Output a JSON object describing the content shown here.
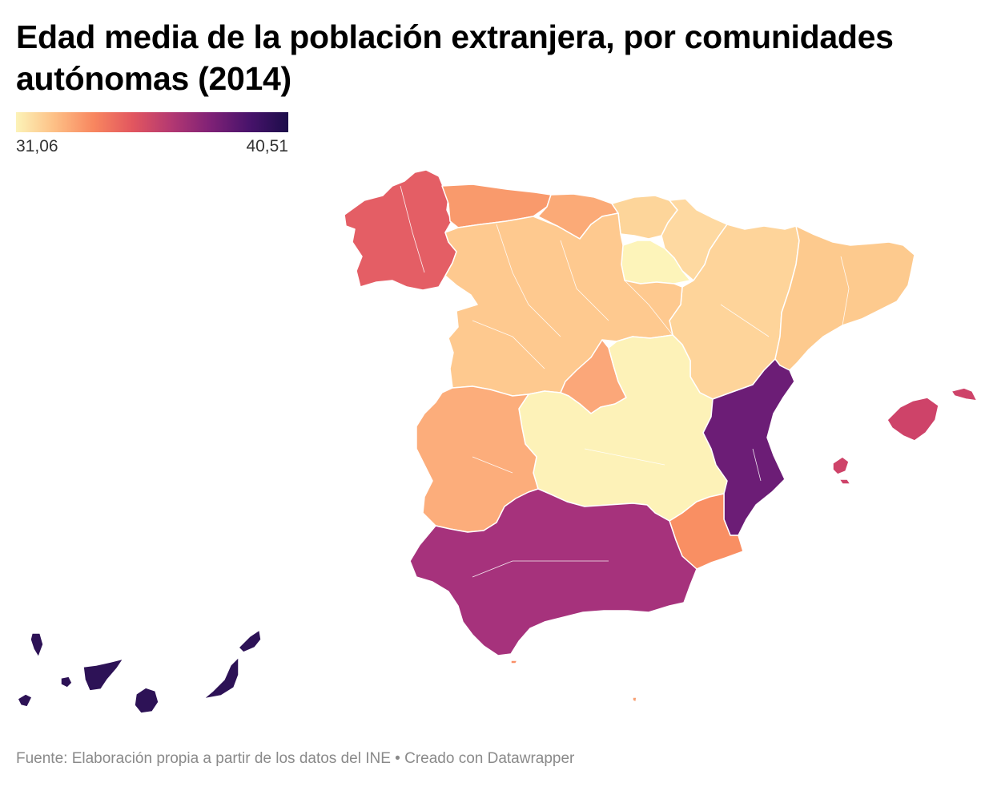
{
  "title": "Edad media de la población extranjera, por comunidades autónomas (2014)",
  "legend": {
    "min_label": "31,06",
    "max_label": "40,51",
    "min_value": 31.06,
    "max_value": 40.51,
    "color_stops": [
      "#fcf3b8",
      "#fdbf85",
      "#f8865f",
      "#e2565f",
      "#b33872",
      "#7f2176",
      "#48136b",
      "#1c0d4a"
    ]
  },
  "regions": {
    "galicia": {
      "color": "#e45e65"
    },
    "asturias": {
      "color": "#f99a6c"
    },
    "cantabria": {
      "color": "#fbaa77"
    },
    "pais_vasco": {
      "color": "#fdd59a"
    },
    "navarra": {
      "color": "#fed9a1"
    },
    "la_rioja": {
      "color": "#fdf4ba"
    },
    "aragon": {
      "color": "#fed49a"
    },
    "cataluna": {
      "color": "#fdca8e"
    },
    "castilla_y_leon": {
      "color": "#fec98f"
    },
    "madrid": {
      "color": "#fba779"
    },
    "castilla_la_mancha": {
      "color": "#fdf2b8"
    },
    "extremadura": {
      "color": "#fcad7b"
    },
    "comunidad_valenciana": {
      "color": "#6c1d76"
    },
    "murcia": {
      "color": "#f98f63"
    },
    "andalucia": {
      "color": "#a6327c"
    },
    "baleares": {
      "color": "#ce4369"
    },
    "canarias": {
      "color": "#2d1256"
    },
    "ceuta": {
      "color": "#f99068"
    },
    "melilla": {
      "color": "#f7a074"
    }
  },
  "footer": "Fuente: Elaboración propia a partir de los datos del INE • Creado con Datawrapper"
}
